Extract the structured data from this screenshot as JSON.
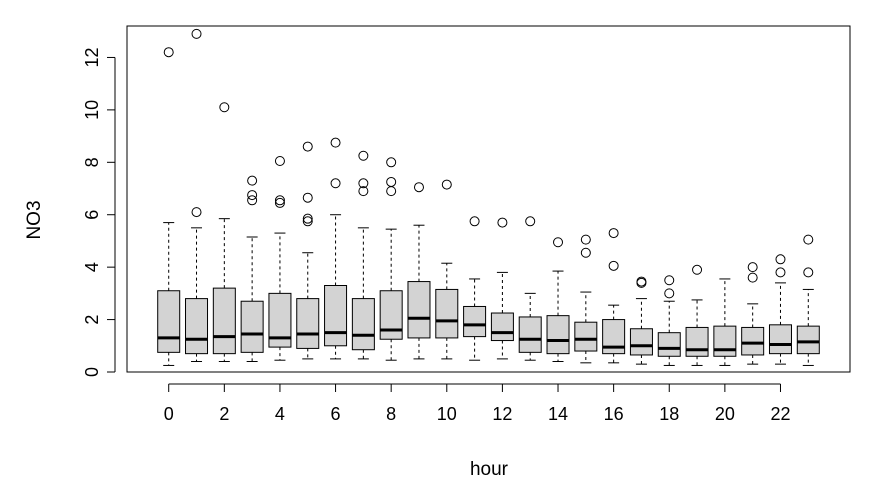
{
  "chart_data": {
    "type": "boxplot",
    "xlabel": "hour",
    "ylabel": "NO3",
    "ylim": [
      0,
      13.2
    ],
    "xlim": [
      -1.5,
      24.5
    ],
    "y_ticks": [
      0,
      2,
      4,
      6,
      8,
      10,
      12
    ],
    "x_ticks": [
      0,
      2,
      4,
      6,
      8,
      10,
      12,
      14,
      16,
      18,
      20,
      22
    ],
    "grid": false,
    "legend": "none",
    "box_fill": "#d3d3d3",
    "boxes": [
      {
        "x": 0,
        "whisker_low": 0.25,
        "q1": 0.75,
        "median": 1.3,
        "q3": 3.1,
        "whisker_high": 5.7,
        "outliers": [
          12.2
        ]
      },
      {
        "x": 1,
        "whisker_low": 0.4,
        "q1": 0.7,
        "median": 1.25,
        "q3": 2.8,
        "whisker_high": 5.5,
        "outliers": [
          6.1,
          12.9
        ]
      },
      {
        "x": 2,
        "whisker_low": 0.4,
        "q1": 0.7,
        "median": 1.35,
        "q3": 3.2,
        "whisker_high": 5.85,
        "outliers": [
          10.1
        ]
      },
      {
        "x": 3,
        "whisker_low": 0.4,
        "q1": 0.75,
        "median": 1.45,
        "q3": 2.7,
        "whisker_high": 5.15,
        "outliers": [
          6.55,
          6.75,
          7.3
        ]
      },
      {
        "x": 4,
        "whisker_low": 0.45,
        "q1": 0.95,
        "median": 1.3,
        "q3": 3.0,
        "whisker_high": 5.3,
        "outliers": [
          6.45,
          6.55,
          8.05
        ]
      },
      {
        "x": 5,
        "whisker_low": 0.5,
        "q1": 0.9,
        "median": 1.45,
        "q3": 2.8,
        "whisker_high": 4.55,
        "outliers": [
          5.75,
          5.85,
          6.65,
          8.6
        ]
      },
      {
        "x": 6,
        "whisker_low": 0.5,
        "q1": 1.0,
        "median": 1.5,
        "q3": 3.3,
        "whisker_high": 6.0,
        "outliers": [
          7.2,
          8.75
        ]
      },
      {
        "x": 7,
        "whisker_low": 0.5,
        "q1": 0.85,
        "median": 1.4,
        "q3": 2.8,
        "whisker_high": 5.5,
        "outliers": [
          6.9,
          7.2,
          8.25
        ]
      },
      {
        "x": 8,
        "whisker_low": 0.45,
        "q1": 1.25,
        "median": 1.6,
        "q3": 3.1,
        "whisker_high": 5.45,
        "outliers": [
          6.9,
          7.25,
          8.0
        ]
      },
      {
        "x": 9,
        "whisker_low": 0.5,
        "q1": 1.3,
        "median": 2.05,
        "q3": 3.45,
        "whisker_high": 5.6,
        "outliers": [
          7.05
        ]
      },
      {
        "x": 10,
        "whisker_low": 0.5,
        "q1": 1.3,
        "median": 1.95,
        "q3": 3.15,
        "whisker_high": 4.15,
        "outliers": [
          7.15
        ]
      },
      {
        "x": 11,
        "whisker_low": 0.45,
        "q1": 1.35,
        "median": 1.8,
        "q3": 2.5,
        "whisker_high": 3.55,
        "outliers": [
          5.75
        ]
      },
      {
        "x": 12,
        "whisker_low": 0.5,
        "q1": 1.2,
        "median": 1.5,
        "q3": 2.25,
        "whisker_high": 3.8,
        "outliers": [
          5.7
        ]
      },
      {
        "x": 13,
        "whisker_low": 0.45,
        "q1": 0.75,
        "median": 1.25,
        "q3": 2.1,
        "whisker_high": 3.0,
        "outliers": [
          5.75
        ]
      },
      {
        "x": 14,
        "whisker_low": 0.4,
        "q1": 0.7,
        "median": 1.2,
        "q3": 2.15,
        "whisker_high": 3.85,
        "outliers": [
          4.95
        ]
      },
      {
        "x": 15,
        "whisker_low": 0.35,
        "q1": 0.8,
        "median": 1.25,
        "q3": 1.9,
        "whisker_high": 3.05,
        "outliers": [
          4.55,
          5.05
        ]
      },
      {
        "x": 16,
        "whisker_low": 0.35,
        "q1": 0.7,
        "median": 0.95,
        "q3": 2.0,
        "whisker_high": 2.55,
        "outliers": [
          4.05,
          5.3
        ]
      },
      {
        "x": 17,
        "whisker_low": 0.3,
        "q1": 0.65,
        "median": 1.0,
        "q3": 1.65,
        "whisker_high": 2.8,
        "outliers": [
          3.4,
          3.45
        ]
      },
      {
        "x": 18,
        "whisker_low": 0.25,
        "q1": 0.6,
        "median": 0.9,
        "q3": 1.5,
        "whisker_high": 2.7,
        "outliers": [
          3.0,
          3.5
        ]
      },
      {
        "x": 19,
        "whisker_low": 0.25,
        "q1": 0.6,
        "median": 0.85,
        "q3": 1.7,
        "whisker_high": 2.75,
        "outliers": [
          3.9
        ]
      },
      {
        "x": 20,
        "whisker_low": 0.25,
        "q1": 0.6,
        "median": 0.85,
        "q3": 1.75,
        "whisker_high": 3.55,
        "outliers": []
      },
      {
        "x": 21,
        "whisker_low": 0.3,
        "q1": 0.65,
        "median": 1.1,
        "q3": 1.7,
        "whisker_high": 2.6,
        "outliers": [
          3.6,
          4.0
        ]
      },
      {
        "x": 22,
        "whisker_low": 0.3,
        "q1": 0.7,
        "median": 1.05,
        "q3": 1.8,
        "whisker_high": 3.4,
        "outliers": [
          3.8,
          4.3
        ]
      },
      {
        "x": 23,
        "whisker_low": 0.25,
        "q1": 0.7,
        "median": 1.15,
        "q3": 1.75,
        "whisker_high": 3.15,
        "outliers": [
          3.8,
          5.05
        ]
      }
    ]
  }
}
